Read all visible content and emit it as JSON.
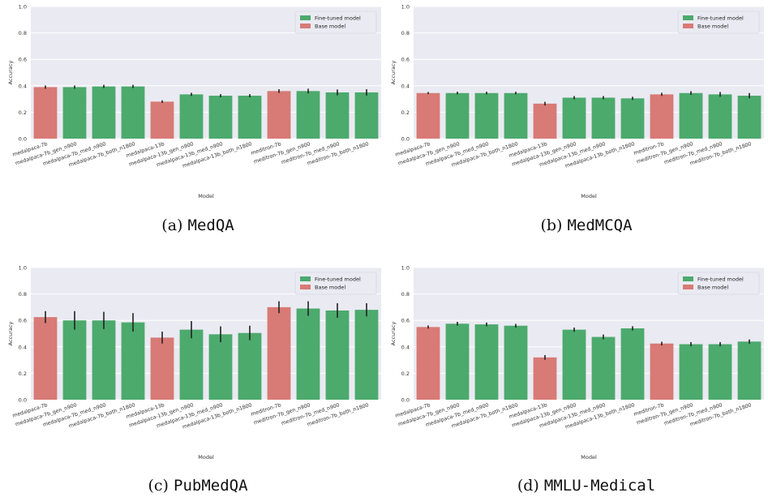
{
  "figure": {
    "colors": {
      "fine_tuned": "#4caa6d",
      "base": "#d87a75",
      "plot_bg": "#eaeaf2",
      "grid": "#ffffff",
      "error_bar": "#222222"
    },
    "legend_labels": {
      "fine_tuned": "Fine-tuned model",
      "base": "Base model"
    }
  },
  "chart_data": [
    {
      "type": "bar",
      "caption_prefix": "(a)",
      "caption_name": "MedQA",
      "xlabel": "Model",
      "ylabel": "Accuracy",
      "ylim": [
        0,
        1.0
      ],
      "yticks": [
        "0.0",
        "0.2",
        "0.4",
        "0.6",
        "0.8",
        "1.0"
      ],
      "grid": true,
      "legend": "top-right",
      "categories": [
        "medalpaca-7b",
        "medalpaca-7b_gen_n900",
        "medalpaca-7b_med_n900",
        "medalpaca-7b_both_n1800",
        "medalpaca-13b",
        "medalpaca-13b_gen_n900",
        "medalpaca-13b_med_n900",
        "medalpaca-13b_both_n1800",
        "meditron-7b",
        "meditron-7b_gen_n900",
        "meditron-7b_med_n900",
        "meditron-7b_both_n1800"
      ],
      "group": [
        "base",
        "fine_tuned",
        "fine_tuned",
        "fine_tuned",
        "base",
        "fine_tuned",
        "fine_tuned",
        "fine_tuned",
        "base",
        "fine_tuned",
        "fine_tuned",
        "fine_tuned"
      ],
      "values": [
        0.39,
        0.39,
        0.395,
        0.395,
        0.28,
        0.335,
        0.325,
        0.325,
        0.36,
        0.36,
        0.35,
        0.35
      ],
      "errors": [
        0.012,
        0.012,
        0.012,
        0.012,
        0.01,
        0.012,
        0.012,
        0.012,
        0.014,
        0.018,
        0.022,
        0.024
      ]
    },
    {
      "type": "bar",
      "caption_prefix": "(b)",
      "caption_name": "MedMCQA",
      "xlabel": "Model",
      "ylabel": "Accuracy",
      "ylim": [
        0,
        1.0
      ],
      "yticks": [
        "0.0",
        "0.2",
        "0.4",
        "0.6",
        "0.8",
        "1.0"
      ],
      "grid": true,
      "legend": "top-right",
      "categories": [
        "medalpaca-7b",
        "medalpaca-7b_gen_n900",
        "medalpaca-7b_med_n900",
        "medalpaca-7b_both_n1800",
        "medalpaca-13b",
        "medalpaca-13b_gen_n900",
        "medalpaca-13b_med_n900",
        "medalpaca-13b_both_n1800",
        "meditron-7b",
        "meditron-7b_gen_n900",
        "meditron-7b_med_n900",
        "meditron-7b_both_n1800"
      ],
      "group": [
        "base",
        "fine_tuned",
        "fine_tuned",
        "fine_tuned",
        "base",
        "fine_tuned",
        "fine_tuned",
        "fine_tuned",
        "base",
        "fine_tuned",
        "fine_tuned",
        "fine_tuned"
      ],
      "values": [
        0.345,
        0.345,
        0.345,
        0.345,
        0.265,
        0.31,
        0.31,
        0.305,
        0.335,
        0.345,
        0.335,
        0.325
      ],
      "errors": [
        0.008,
        0.01,
        0.01,
        0.01,
        0.014,
        0.012,
        0.012,
        0.012,
        0.012,
        0.014,
        0.018,
        0.02
      ]
    },
    {
      "type": "bar",
      "caption_prefix": "(c)",
      "caption_name": "PubMedQA",
      "xlabel": "Model",
      "ylabel": "Accuracy",
      "ylim": [
        0,
        1.0
      ],
      "yticks": [
        "0.0",
        "0.2",
        "0.4",
        "0.6",
        "0.8",
        "1.0"
      ],
      "grid": true,
      "legend": "top-right",
      "categories": [
        "medalpaca-7b",
        "medalpaca-7b_gen_n900",
        "medalpaca-7b_med_n900",
        "medalpaca-7b_both_n1800",
        "medalpaca-13b",
        "medalpaca-13b_gen_n900",
        "medalpaca-13b_med_n900",
        "medalpaca-13b_both_n1800",
        "meditron-7b",
        "meditron-7b_gen_n900",
        "meditron-7b_med_n900",
        "meditron-7b_both_n1800"
      ],
      "group": [
        "base",
        "fine_tuned",
        "fine_tuned",
        "fine_tuned",
        "base",
        "fine_tuned",
        "fine_tuned",
        "fine_tuned",
        "base",
        "fine_tuned",
        "fine_tuned",
        "fine_tuned"
      ],
      "values": [
        0.625,
        0.6,
        0.6,
        0.585,
        0.47,
        0.53,
        0.495,
        0.505,
        0.7,
        0.69,
        0.675,
        0.68
      ],
      "errors": [
        0.045,
        0.07,
        0.065,
        0.07,
        0.045,
        0.065,
        0.06,
        0.055,
        0.045,
        0.055,
        0.055,
        0.05
      ]
    },
    {
      "type": "bar",
      "caption_prefix": "(d)",
      "caption_name": "MMLU-Medical",
      "xlabel": "Model",
      "ylabel": "Accuracy",
      "ylim": [
        0,
        1.0
      ],
      "yticks": [
        "0.0",
        "0.2",
        "0.4",
        "0.6",
        "0.8",
        "1.0"
      ],
      "grid": true,
      "legend": "top-right",
      "categories": [
        "medalpaca-7b",
        "medalpaca-7b_gen_n900",
        "medalpaca-7b_med_n900",
        "medalpaca-7b_both_n1800",
        "medalpaca-13b",
        "medalpaca-13b_gen_n900",
        "medalpaca-13b_med_n900",
        "medalpaca-13b_both_n1800",
        "meditron-7b",
        "meditron-7b_gen_n900",
        "meditron-7b_med_n900",
        "meditron-7b_both_n1800"
      ],
      "group": [
        "base",
        "fine_tuned",
        "fine_tuned",
        "fine_tuned",
        "base",
        "fine_tuned",
        "fine_tuned",
        "fine_tuned",
        "base",
        "fine_tuned",
        "fine_tuned",
        "fine_tuned"
      ],
      "values": [
        0.55,
        0.575,
        0.57,
        0.56,
        0.32,
        0.53,
        0.475,
        0.54,
        0.425,
        0.42,
        0.42,
        0.44
      ],
      "errors": [
        0.012,
        0.014,
        0.014,
        0.014,
        0.018,
        0.016,
        0.018,
        0.016,
        0.014,
        0.016,
        0.016,
        0.016
      ]
    }
  ]
}
